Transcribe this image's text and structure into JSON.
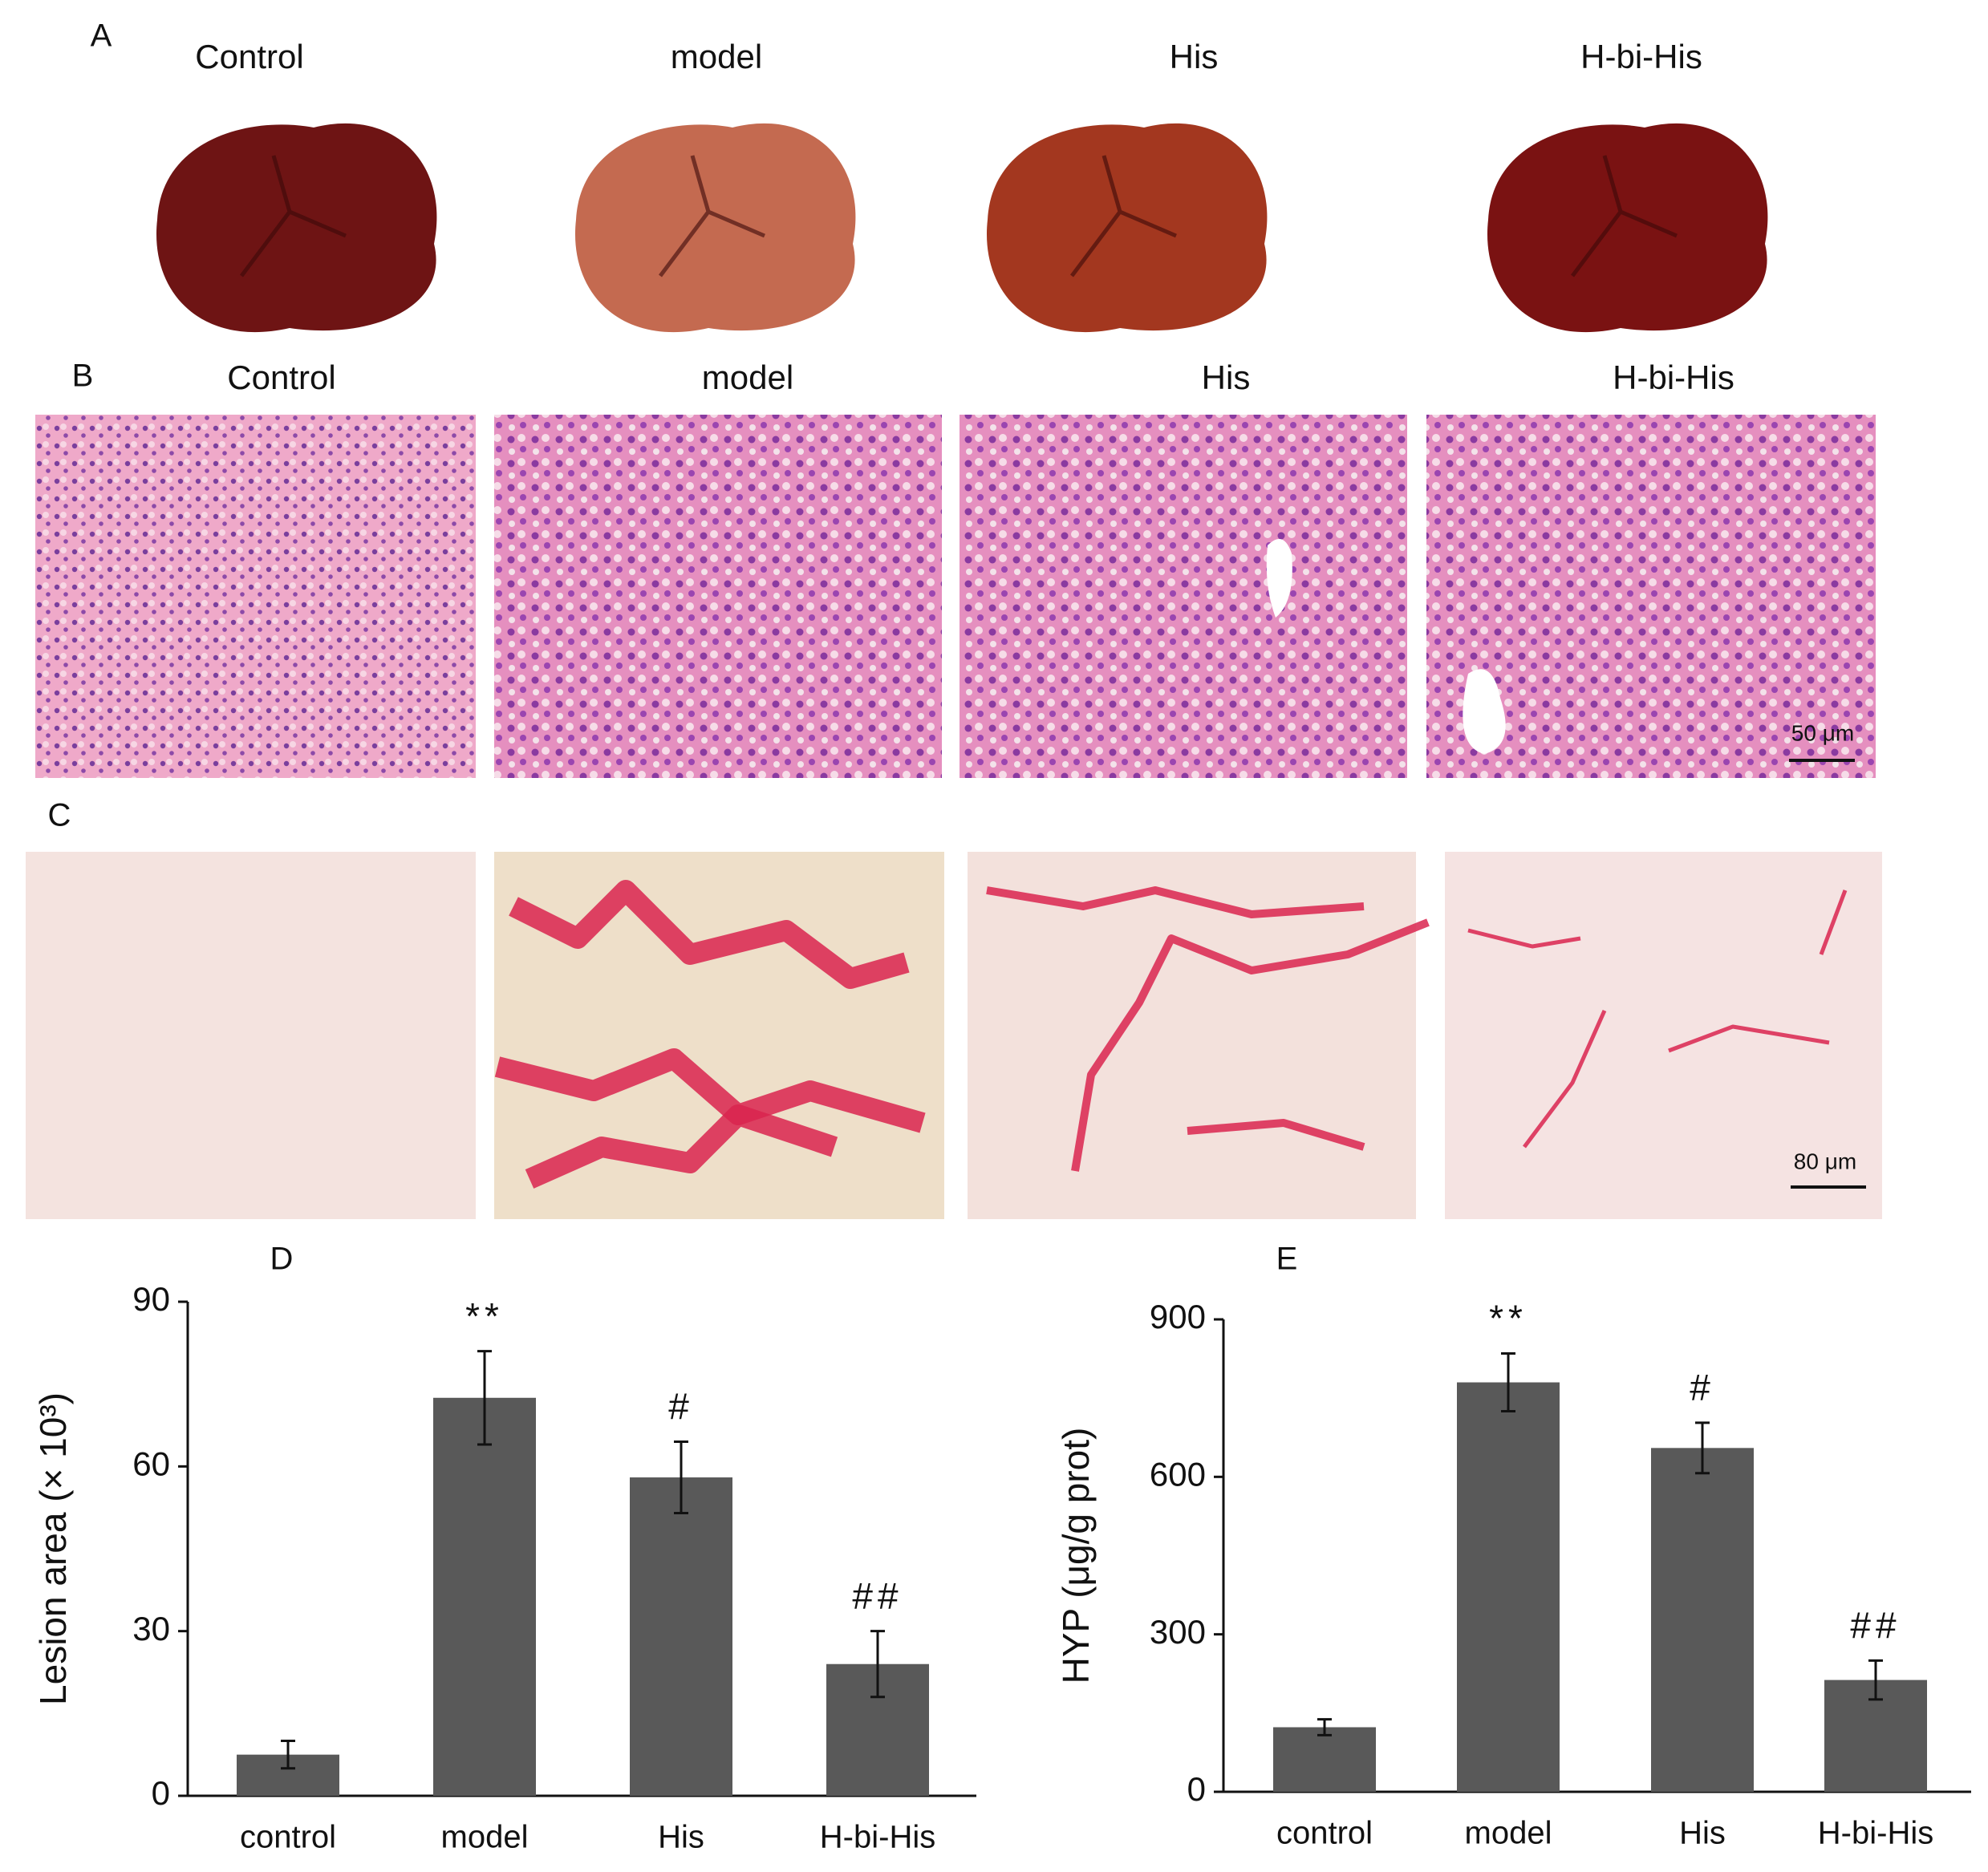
{
  "panels": {
    "A": {
      "label": "A",
      "titles": [
        "Control",
        "model",
        "His",
        "H-bi-His"
      ]
    },
    "B": {
      "label": "B",
      "titles": [
        "Control",
        "model",
        "His",
        "H-bi-His"
      ],
      "scale_bar": "50 μm"
    },
    "C": {
      "label": "C",
      "scale_bar": "80 μm"
    }
  },
  "chart_data": [
    {
      "type": "bar",
      "title": "D",
      "ylabel": "Lesion area (× 10³)",
      "categories": [
        "control",
        "model",
        "His",
        "H-bi-His"
      ],
      "values": [
        7.5,
        72.5,
        58,
        24
      ],
      "errors": [
        2.5,
        8.5,
        6.5,
        6
      ],
      "annotations": [
        null,
        "**",
        "#",
        "##"
      ],
      "color": "#595959",
      "ylim": [
        0,
        90
      ],
      "yticks": [
        0,
        30,
        60,
        90
      ]
    },
    {
      "type": "bar",
      "title": "E",
      "ylabel": "HYP (μg/g prot)",
      "categories": [
        "control",
        "model",
        "His",
        "H-bi-His"
      ],
      "values": [
        123,
        780,
        655,
        213
      ],
      "errors": [
        15,
        55,
        48,
        37
      ],
      "annotations": [
        null,
        "**",
        "#",
        "##"
      ],
      "color": "#595959",
      "ylim": [
        0,
        900
      ],
      "yticks": [
        0,
        300,
        600,
        900
      ]
    }
  ]
}
